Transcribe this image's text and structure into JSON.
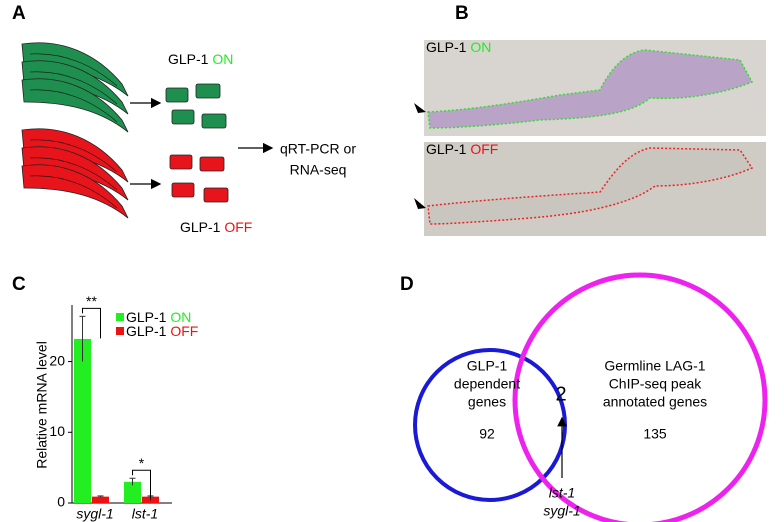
{
  "panel_a": {
    "label": "A",
    "on_label": "GLP-1 ON",
    "off_label": "GLP-1 OFF",
    "output_lines": [
      "qRT-PCR or",
      "RNA-seq"
    ]
  },
  "panel_b": {
    "label": "B",
    "on_label": "GLP-1 ON",
    "off_label": "GLP-1 OFF"
  },
  "panel_c_label": "C",
  "chart_data": {
    "type": "bar",
    "y_label": "Relative mRNA level",
    "categories": [
      "sygl-1",
      "lst-1"
    ],
    "series": [
      {
        "name": "GLP-1 ON",
        "color": "#22ee22",
        "values": [
          23.2,
          3.0
        ],
        "errors": [
          3.2,
          0.5
        ]
      },
      {
        "name": "GLP-1 OFF",
        "color": "#ee1111",
        "values": [
          0.9,
          0.9
        ],
        "errors": [
          0.1,
          0.1
        ]
      }
    ],
    "annotations": [
      "**",
      "*"
    ],
    "ylim": [
      0,
      28
    ],
    "yticks": [
      0,
      10,
      20
    ],
    "grid": false,
    "legend": "upper right"
  },
  "panel_d": {
    "label": "D",
    "left_lines": [
      "GLP-1",
      "dependent",
      "genes"
    ],
    "left_count": "92",
    "right_lines": [
      "Germline LAG-1",
      "ChIP-seq peak",
      "annotated genes"
    ],
    "right_count": "135",
    "overlap_count": "2",
    "overlap_genes": [
      "lst-1",
      "sygl-1"
    ]
  }
}
